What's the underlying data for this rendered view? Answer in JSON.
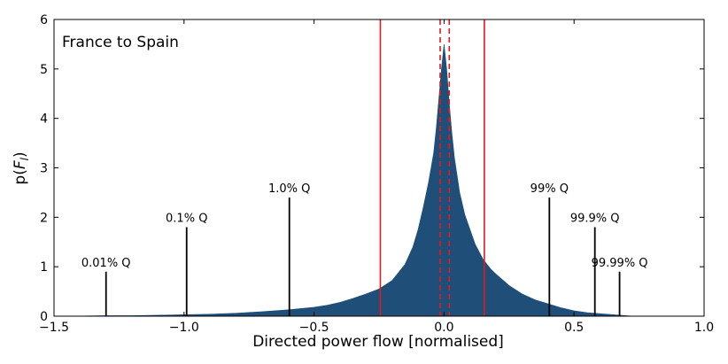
{
  "chart_data": {
    "type": "area",
    "title": "France to Spain",
    "xlabel": "Directed power flow [normalised]",
    "ylabel": "p(F_l)",
    "xlim": [
      -1.5,
      1.0
    ],
    "ylim": [
      0,
      6
    ],
    "xticks": [
      -1.5,
      -1.0,
      -0.5,
      0.0,
      0.5,
      1.0
    ],
    "xtick_labels": [
      "−1.5",
      "−1.0",
      "−0.5",
      "0.0",
      "0.5",
      "1.0"
    ],
    "yticks": [
      0,
      1,
      2,
      3,
      4,
      5,
      6
    ],
    "ytick_labels": [
      "0",
      "1",
      "2",
      "3",
      "4",
      "5",
      "6"
    ],
    "grid": false,
    "colors": {
      "fill": "#1f4e79",
      "limit_line": "#e31a1c",
      "quantile_line": "#000000"
    },
    "density": {
      "x": [
        -1.45,
        -1.3,
        -1.2,
        -1.1,
        -1.0,
        -0.9,
        -0.8,
        -0.7,
        -0.6,
        -0.5,
        -0.45,
        -0.4,
        -0.35,
        -0.3,
        -0.25,
        -0.2,
        -0.15,
        -0.12,
        -0.1,
        -0.08,
        -0.06,
        -0.04,
        -0.03,
        -0.02,
        -0.01,
        0.0,
        0.01,
        0.02,
        0.03,
        0.04,
        0.06,
        0.08,
        0.1,
        0.12,
        0.15,
        0.18,
        0.2,
        0.25,
        0.3,
        0.35,
        0.4,
        0.45,
        0.5,
        0.55,
        0.6,
        0.65,
        0.7,
        0.73
      ],
      "y": [
        0.0,
        0.01,
        0.01,
        0.02,
        0.03,
        0.04,
        0.06,
        0.09,
        0.13,
        0.18,
        0.22,
        0.28,
        0.36,
        0.45,
        0.55,
        0.72,
        1.05,
        1.4,
        1.75,
        2.2,
        2.7,
        3.3,
        3.8,
        4.4,
        5.0,
        5.5,
        5.0,
        4.3,
        3.7,
        3.2,
        2.5,
        2.05,
        1.75,
        1.45,
        1.15,
        0.95,
        0.85,
        0.62,
        0.45,
        0.33,
        0.25,
        0.17,
        0.11,
        0.07,
        0.05,
        0.03,
        0.01,
        0.0
      ]
    },
    "limit_lines": {
      "solid": [
        -0.245,
        0.155
      ],
      "dashed": [
        -0.015,
        0.02
      ]
    },
    "quantiles": [
      {
        "label": "0.01% Q",
        "x": -1.3,
        "height": 0.9
      },
      {
        "label": "0.1% Q",
        "x": -0.99,
        "height": 1.8
      },
      {
        "label": "1.0% Q",
        "x": -0.595,
        "height": 2.4
      },
      {
        "label": "99% Q",
        "x": 0.405,
        "height": 2.4
      },
      {
        "label": "99.9% Q",
        "x": 0.58,
        "height": 1.8
      },
      {
        "label": "99.99% Q",
        "x": 0.675,
        "height": 0.9
      }
    ]
  }
}
